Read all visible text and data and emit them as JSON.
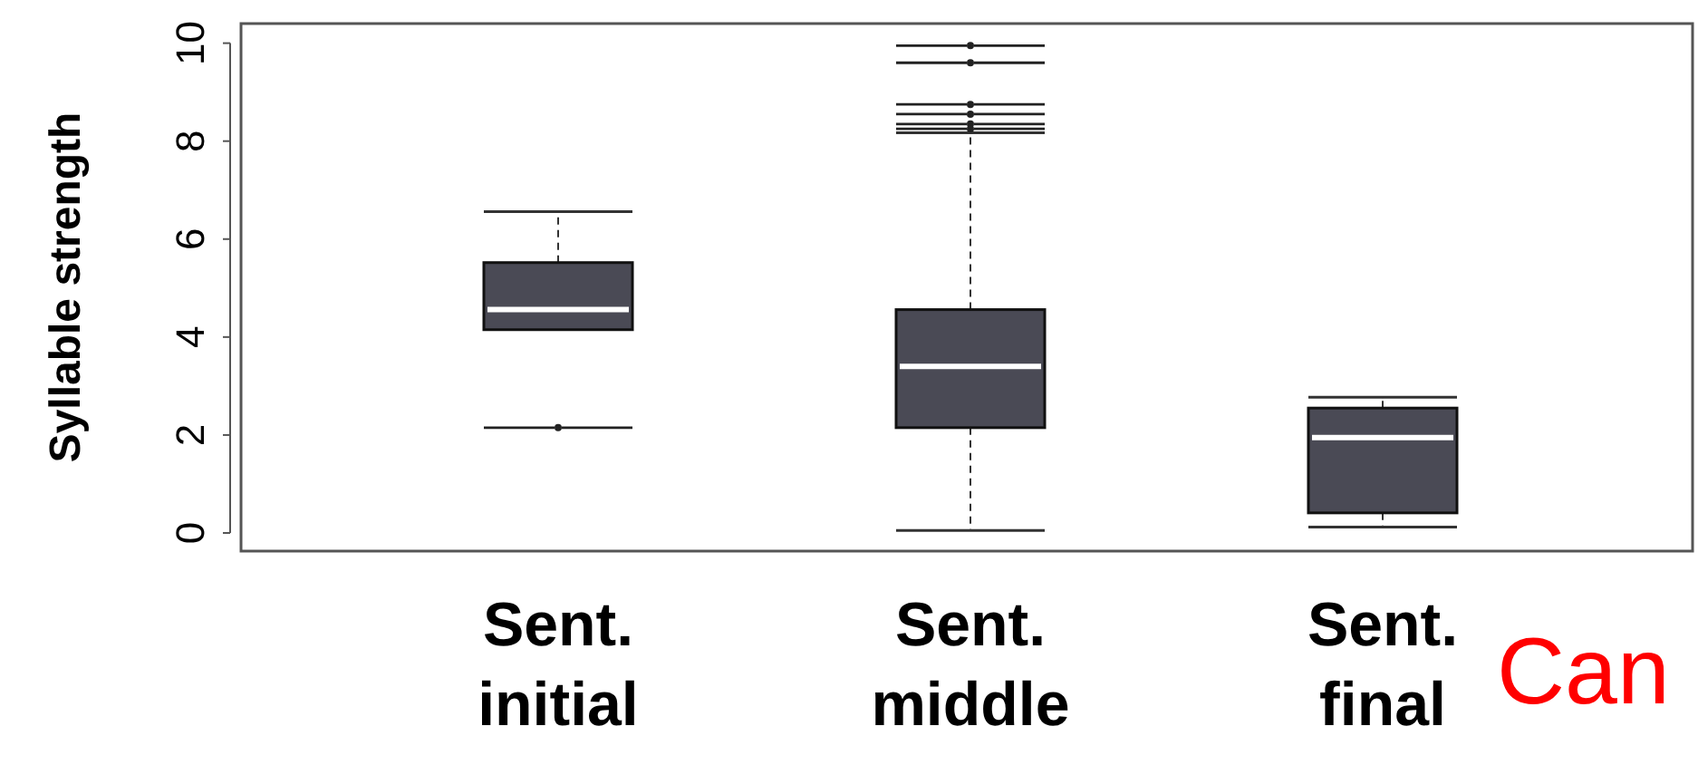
{
  "chart_data": {
    "type": "box",
    "ylabel": "Syllable strength",
    "categories": [
      "Sent.\ninitial",
      "Sent.\nmiddle",
      "Sent.\nfinal"
    ],
    "color": "#4a4a55",
    "boxes": [
      {
        "low": 4.15,
        "q1": 4.15,
        "median": 4.56,
        "q3": 5.52,
        "high": 6.56,
        "outliers": [
          2.15
        ]
      },
      {
        "low": 0.05,
        "q1": 2.15,
        "median": 3.4,
        "q3": 4.56,
        "high": 8.17,
        "outliers": [
          9.95,
          9.6,
          8.75,
          8.55,
          8.35,
          8.25
        ]
      },
      {
        "low": 0.12,
        "q1": 0.41,
        "median": 1.95,
        "q3": 2.55,
        "high": 2.77
      }
    ],
    "ylim": [
      -0.37,
      10.4
    ],
    "yticks": [
      0,
      2,
      4,
      6,
      8,
      10
    ],
    "grid": false,
    "annotations": [
      "Can"
    ]
  }
}
